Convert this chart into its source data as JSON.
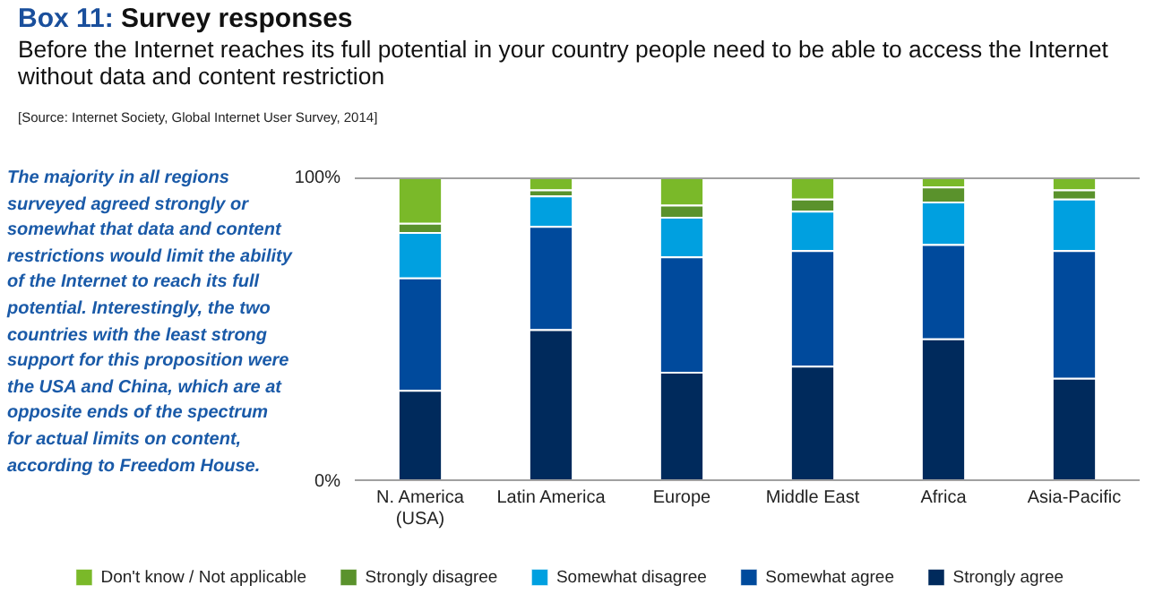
{
  "chart_data": {
    "type": "bar",
    "stacked": true,
    "title": "Box 11: Survey responses",
    "subtitle": "Before the Internet reaches its full potential in your country people need to be able to access the Internet without data and content restriction",
    "annotations": [
      "[Source: Internet Society, Global Internet User Survey, 2014]",
      "The majority in all regions surveyed agreed strongly or somewhat that data and content restrictions would limit the ability of the Internet to reach its full potential. Interestingly, the two countries with the least strong support for this proposition were the USA and China, which are at opposite ends of the spectrum for actual limits on content, according to Freedom House."
    ],
    "categories": [
      "N. America\n(USA)",
      "Latin America",
      "Europe",
      "Middle East",
      "Africa",
      "Asia-Pacific"
    ],
    "series": [
      {
        "name": "Strongly agree",
        "color": "#002a5c",
        "values": [
          30,
          50,
          36,
          38,
          47,
          34
        ]
      },
      {
        "name": "Somewhat agree",
        "color": "#004a9c",
        "values": [
          37,
          34,
          38,
          38,
          31,
          42
        ]
      },
      {
        "name": "Somewhat disagree",
        "color": "#00a0e0",
        "values": [
          15,
          10,
          13,
          13,
          14,
          17
        ]
      },
      {
        "name": "Strongly disagree",
        "color": "#5a922c",
        "values": [
          3,
          2,
          4,
          4,
          5,
          3
        ]
      },
      {
        "name": "Don't know / Not applicable",
        "color": "#7ab929",
        "values": [
          15,
          4,
          9,
          7,
          3,
          4
        ]
      }
    ],
    "ylim": [
      0,
      100
    ],
    "yticks": [
      {
        "value": 0,
        "label": "0%"
      },
      {
        "value": 100,
        "label": "100%"
      }
    ],
    "legend": "bottom"
  }
}
